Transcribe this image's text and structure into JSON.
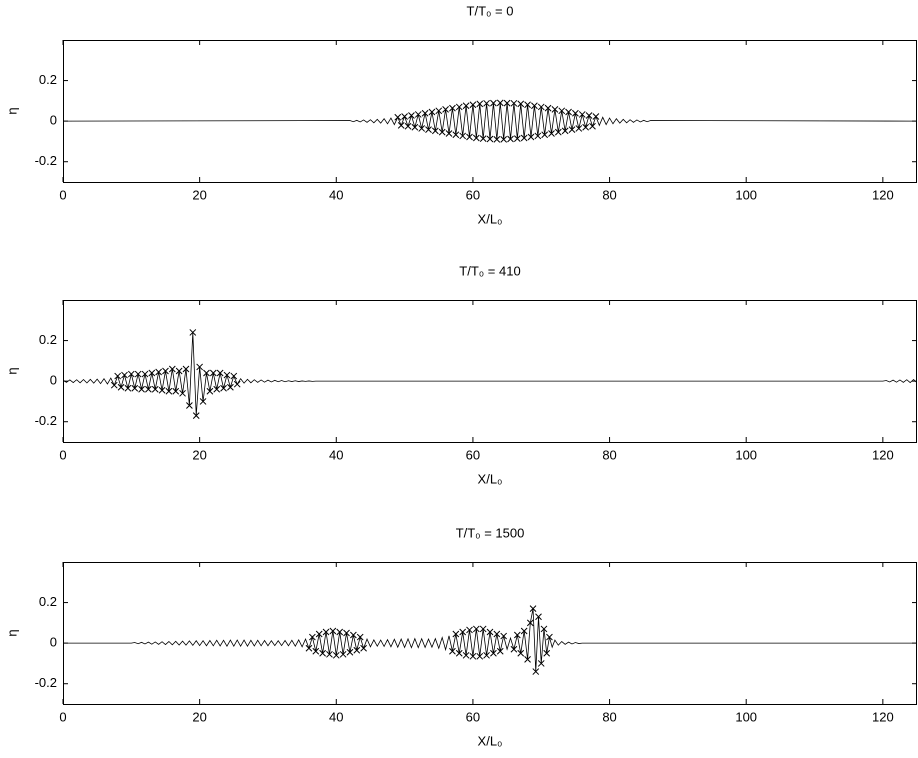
{
  "chart_data": [
    {
      "type": "line",
      "title": "T/T₀ = 0",
      "xlabel": "X/L₀",
      "ylabel": "η",
      "xlim": [
        0,
        125
      ],
      "ylim": [
        -0.3,
        0.4
      ],
      "xticks": [
        0,
        20,
        40,
        60,
        80,
        100,
        120
      ],
      "yticks": [
        -0.2,
        0,
        0.2
      ],
      "series": [
        {
          "color": "#000000",
          "marker": "none",
          "x": [
            0,
            42,
            42.5,
            43,
            43.5,
            44,
            44.5,
            45,
            45.5,
            46,
            46.5,
            47,
            47.5,
            48,
            48.5,
            49
          ],
          "values": [
            0,
            0.003,
            -0.003,
            0.004,
            -0.004,
            0.006,
            -0.006,
            0.007,
            -0.008,
            0.009,
            -0.01,
            0.012,
            -0.013,
            0.015,
            -0.017,
            0.019
          ]
        },
        {
          "color": "#000000",
          "marker": "x",
          "x": [
            49,
            49.5,
            50,
            50.5,
            51,
            51.5,
            52,
            52.5,
            53,
            53.5,
            54,
            54.5,
            55,
            55.5,
            56,
            56.5,
            57,
            57.5,
            58,
            58.5,
            59,
            59.5,
            60,
            60.5,
            61,
            61.5,
            62,
            62.5,
            63,
            63.5,
            64,
            64.5,
            65,
            65.5,
            66,
            66.5,
            67,
            67.5,
            68,
            68.5,
            69,
            69.5,
            70,
            70.5,
            71,
            71.5,
            72,
            72.5,
            73,
            73.5,
            74,
            74.5,
            75,
            75.5,
            76,
            76.5,
            77,
            77.5,
            78
          ],
          "values": [
            0.019,
            -0.021,
            0.023,
            -0.025,
            0.028,
            -0.03,
            0.033,
            -0.036,
            0.039,
            -0.042,
            0.045,
            -0.048,
            0.051,
            -0.054,
            0.058,
            -0.061,
            0.064,
            -0.067,
            0.07,
            -0.073,
            0.076,
            -0.078,
            0.081,
            -0.083,
            0.085,
            -0.086,
            0.088,
            -0.088,
            0.089,
            -0.09,
            0.09,
            -0.09,
            0.089,
            -0.088,
            0.088,
            -0.086,
            0.085,
            -0.083,
            0.081,
            -0.078,
            0.076,
            -0.073,
            0.07,
            -0.067,
            0.064,
            -0.061,
            0.058,
            -0.054,
            0.051,
            -0.048,
            0.045,
            -0.042,
            0.039,
            -0.036,
            0.033,
            -0.03,
            0.028,
            -0.025,
            0.023
          ]
        },
        {
          "color": "#000000",
          "marker": "none",
          "x": [
            78,
            78.5,
            79,
            79.5,
            80,
            80.5,
            81,
            81.5,
            82,
            82.5,
            83,
            83.5,
            84,
            84.5,
            85,
            85.5,
            86,
            125
          ],
          "values": [
            0.023,
            -0.021,
            0.019,
            -0.017,
            0.015,
            -0.013,
            0.012,
            -0.01,
            0.009,
            -0.008,
            0.007,
            -0.006,
            0.006,
            -0.004,
            0.004,
            -0.003,
            0.003,
            0
          ]
        }
      ]
    },
    {
      "type": "line",
      "title": "T/T₀ = 410",
      "xlabel": "X/L₀",
      "ylabel": "η",
      "xlim": [
        0,
        125
      ],
      "ylim": [
        -0.3,
        0.4
      ],
      "xticks": [
        0,
        20,
        40,
        60,
        80,
        100,
        120
      ],
      "yticks": [
        -0.2,
        0,
        0.2
      ],
      "series": [
        {
          "color": "#000000",
          "marker": "none",
          "x": [
            0,
            0.5,
            1,
            1.5,
            2,
            2.5,
            3,
            3.5,
            4,
            4.5,
            5,
            5.5,
            6,
            6.5,
            7,
            7.5
          ],
          "values": [
            0.005,
            -0.006,
            0.006,
            -0.007,
            0.007,
            -0.008,
            0.008,
            -0.009,
            0.009,
            -0.01,
            0.01,
            -0.012,
            0.012,
            -0.014,
            0.015,
            -0.02
          ]
        },
        {
          "color": "#000000",
          "marker": "x",
          "x": [
            7.5,
            8,
            8.5,
            9,
            9.5,
            10,
            10.5,
            11,
            11.5,
            12,
            12.5,
            13,
            13.5,
            14,
            14.5,
            15,
            15.5,
            16,
            16.5,
            17,
            17.5,
            18,
            18.5,
            19,
            19.5,
            20,
            20.5,
            21,
            21.5,
            22,
            22.5,
            23,
            23.5,
            24,
            24.5,
            25,
            25.5
          ],
          "values": [
            -0.02,
            0.025,
            -0.03,
            0.03,
            -0.035,
            0.035,
            -0.035,
            0.035,
            -0.04,
            0.035,
            -0.04,
            0.04,
            -0.04,
            0.045,
            -0.045,
            0.05,
            -0.05,
            0.06,
            -0.05,
            0.05,
            -0.06,
            0.06,
            -0.12,
            0.24,
            -0.17,
            0.07,
            -0.1,
            0.04,
            -0.05,
            0.04,
            -0.04,
            0.04,
            -0.035,
            0.03,
            -0.03,
            0.025,
            -0.015
          ]
        },
        {
          "color": "#000000",
          "marker": "none",
          "x": [
            25.5,
            26,
            26.5,
            27,
            27.5,
            28,
            28.5,
            29,
            29.5,
            30,
            30.5,
            31,
            31.5,
            32,
            32.5,
            33,
            33.5,
            34,
            34.5,
            35,
            35.5,
            36,
            36.5,
            37,
            120,
            120.5,
            121,
            121.5,
            122,
            122.5,
            123,
            123.5,
            124,
            124.5,
            125
          ],
          "values": [
            -0.015,
            0.012,
            -0.01,
            0.009,
            -0.008,
            0.007,
            -0.006,
            0.006,
            -0.005,
            0.005,
            -0.004,
            0.004,
            -0.003,
            0.003,
            -0.003,
            0.002,
            -0.002,
            0.002,
            -0.002,
            0.001,
            -0.001,
            0.001,
            -0.001,
            0,
            0,
            0.003,
            -0.004,
            0.005,
            -0.005,
            0.006,
            -0.006,
            0.007,
            -0.007,
            0.008,
            -0.008
          ]
        }
      ]
    },
    {
      "type": "line",
      "title": "T/T₀ = 1500",
      "xlabel": "X/L₀",
      "ylabel": "η",
      "xlim": [
        0,
        125
      ],
      "ylim": [
        -0.3,
        0.4
      ],
      "xticks": [
        0,
        20,
        40,
        60,
        80,
        100,
        120
      ],
      "yticks": [
        -0.2,
        0,
        0.2
      ],
      "series": [
        {
          "color": "#000000",
          "marker": "none",
          "x": [
            0,
            10,
            10.5,
            11,
            11.5,
            12,
            12.5,
            13,
            13.5,
            14,
            14.5,
            15,
            15.5,
            16,
            16.5,
            17,
            17.5,
            18,
            18.5,
            19,
            19.5,
            20,
            20.5,
            21,
            21.5,
            22,
            22.5,
            23,
            23.5,
            24,
            24.5,
            25,
            25.5,
            26,
            26.5,
            27,
            27.5,
            28,
            28.5,
            29,
            29.5,
            30,
            30.5,
            31,
            31.5,
            32,
            32.5,
            33,
            33.5,
            34,
            34.5,
            35,
            35.5,
            36
          ],
          "values": [
            0,
            0,
            0.003,
            -0.003,
            0.004,
            -0.004,
            0.005,
            -0.005,
            0.006,
            -0.006,
            0.007,
            -0.007,
            0.008,
            -0.008,
            0.009,
            -0.009,
            0.01,
            -0.01,
            0.011,
            -0.011,
            0.012,
            -0.012,
            0.012,
            -0.013,
            0.013,
            -0.013,
            0.014,
            -0.014,
            0.014,
            -0.015,
            0.015,
            -0.015,
            0.015,
            -0.015,
            0.015,
            -0.015,
            0.014,
            -0.014,
            0.014,
            -0.013,
            0.013,
            -0.013,
            0.012,
            -0.012,
            0.012,
            -0.012,
            0.013,
            -0.013,
            0.014,
            -0.015,
            0.016,
            -0.018,
            0.02,
            -0.025
          ]
        },
        {
          "color": "#000000",
          "marker": "x",
          "x": [
            36,
            36.5,
            37,
            37.5,
            38,
            38.5,
            39,
            39.5,
            40,
            40.5,
            41,
            41.5,
            42,
            42.5,
            43,
            43.5,
            44
          ],
          "values": [
            -0.025,
            0.03,
            -0.04,
            0.045,
            -0.05,
            0.055,
            -0.055,
            0.06,
            -0.06,
            0.055,
            -0.055,
            0.05,
            -0.045,
            0.04,
            -0.035,
            0.03,
            -0.025
          ]
        },
        {
          "color": "#000000",
          "marker": "none",
          "x": [
            44,
            44.5,
            45,
            45.5,
            46,
            46.5,
            47,
            47.5,
            48,
            48.5,
            49,
            49.5,
            50,
            50.5,
            51,
            51.5,
            52,
            52.5,
            53,
            53.5,
            54,
            54.5,
            55,
            55.5,
            56,
            56.5,
            57
          ],
          "values": [
            -0.025,
            0.02,
            -0.018,
            0.016,
            -0.015,
            0.015,
            -0.016,
            0.017,
            -0.018,
            0.019,
            -0.02,
            0.02,
            -0.021,
            0.021,
            -0.022,
            0.022,
            -0.022,
            0.022,
            -0.021,
            0.02,
            -0.02,
            0.022,
            -0.025,
            0.028,
            -0.032,
            0.036,
            -0.04
          ]
        },
        {
          "color": "#000000",
          "marker": "x",
          "x": [
            57,
            57.5,
            58,
            58.5,
            59,
            59.5,
            60,
            60.5,
            61,
            61.5,
            62,
            62.5,
            63,
            63.5,
            64,
            64.5
          ],
          "values": [
            -0.04,
            0.045,
            -0.05,
            0.055,
            -0.06,
            0.065,
            -0.065,
            0.07,
            -0.065,
            0.07,
            -0.06,
            0.055,
            -0.05,
            0.045,
            -0.04,
            0.035
          ]
        },
        {
          "color": "#000000",
          "marker": "none",
          "x": [
            64.5,
            65,
            65.5,
            66
          ],
          "values": [
            0.035,
            -0.03,
            0.025,
            -0.03
          ]
        },
        {
          "color": "#000000",
          "marker": "x",
          "x": [
            66,
            66.5,
            67,
            67.5,
            68,
            68.4,
            68.8,
            69.2,
            69.6,
            70,
            70.4,
            70.8,
            71.2
          ],
          "values": [
            -0.03,
            0.04,
            -0.05,
            0.06,
            -0.08,
            0.1,
            0.17,
            -0.14,
            0.13,
            -0.1,
            0.07,
            -0.05,
            0.03
          ]
        },
        {
          "color": "#000000",
          "marker": "none",
          "x": [
            71.2,
            71.6,
            72,
            72.5,
            73,
            73.5,
            74,
            74.5,
            75,
            75.5,
            76,
            125
          ],
          "values": [
            0.03,
            -0.02,
            0.015,
            -0.01,
            0.008,
            -0.006,
            0.005,
            -0.004,
            0.003,
            -0.002,
            0,
            0
          ]
        }
      ]
    }
  ]
}
